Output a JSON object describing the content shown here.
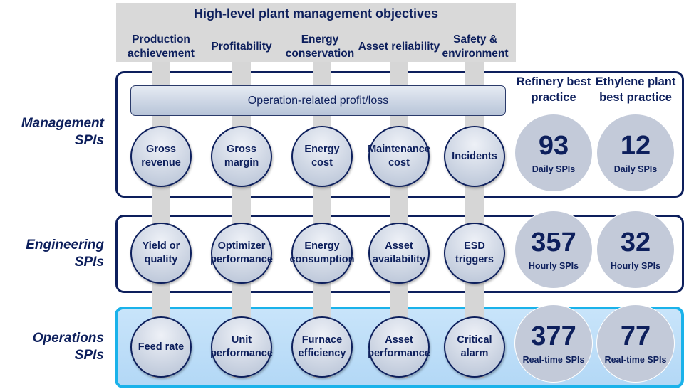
{
  "header": {
    "title": "High-level plant management objectives",
    "objectives": [
      "Production achievement",
      "Profitability",
      "Energy conservation",
      "Asset reliability",
      "Safety & environment"
    ]
  },
  "profit_bar": "Operation-related profit/loss",
  "columns": [
    "Refinery best practice",
    "Ethylene plant best practice"
  ],
  "levels": [
    {
      "label": "Management SPIs",
      "items": [
        "Gross revenue",
        "Gross margin",
        "Energy cost",
        "Maintenance cost",
        "Incidents"
      ],
      "stats": [
        {
          "value": "93",
          "unit": "Daily SPIs"
        },
        {
          "value": "12",
          "unit": "Daily SPIs"
        }
      ]
    },
    {
      "label": "Engineering SPIs",
      "items": [
        "Yield or quality",
        "Optimizer performance",
        "Energy consumption",
        "Asset availability",
        "ESD triggers"
      ],
      "stats": [
        {
          "value": "357",
          "unit": "Hourly SPIs"
        },
        {
          "value": "32",
          "unit": "Hourly SPIs"
        }
      ]
    },
    {
      "label": "Operations SPIs",
      "items": [
        "Feed rate",
        "Unit performance",
        "Furnace efficiency",
        "Asset performance",
        "Critical alarm"
      ],
      "stats": [
        {
          "value": "377",
          "unit": "Real-time SPIs"
        },
        {
          "value": "77",
          "unit": "Real-time SPIs"
        }
      ]
    }
  ],
  "colors": {
    "navy": "#0d1f5c",
    "ops_border": "#1ab2ea",
    "ops_fill": "#c8e4fa",
    "gray": "#d9d9d9"
  }
}
